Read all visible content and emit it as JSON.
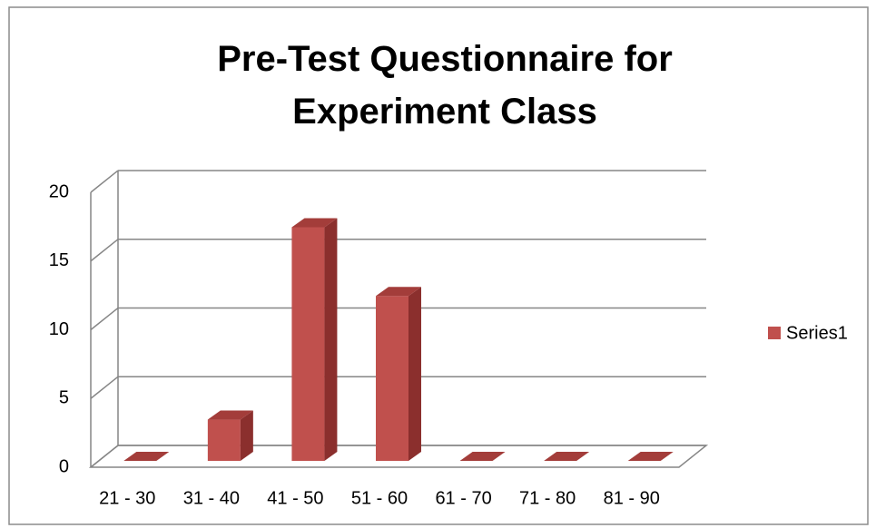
{
  "chart_data": {
    "type": "bar3d",
    "title": "Pre-Test Questionnaire for Experiment Class",
    "categories": [
      "21 - 30",
      "31 - 40",
      "41 - 50",
      "51 - 60",
      "61 - 70",
      "71 - 80",
      "81 - 90"
    ],
    "series": [
      {
        "name": "Series1",
        "color": "#c0504d",
        "values": [
          0,
          3,
          17,
          12,
          0,
          0,
          0
        ]
      }
    ],
    "ylim": [
      0,
      20
    ],
    "yticks": [
      0,
      5,
      10,
      15,
      20
    ],
    "grid": true,
    "legend": "right"
  }
}
